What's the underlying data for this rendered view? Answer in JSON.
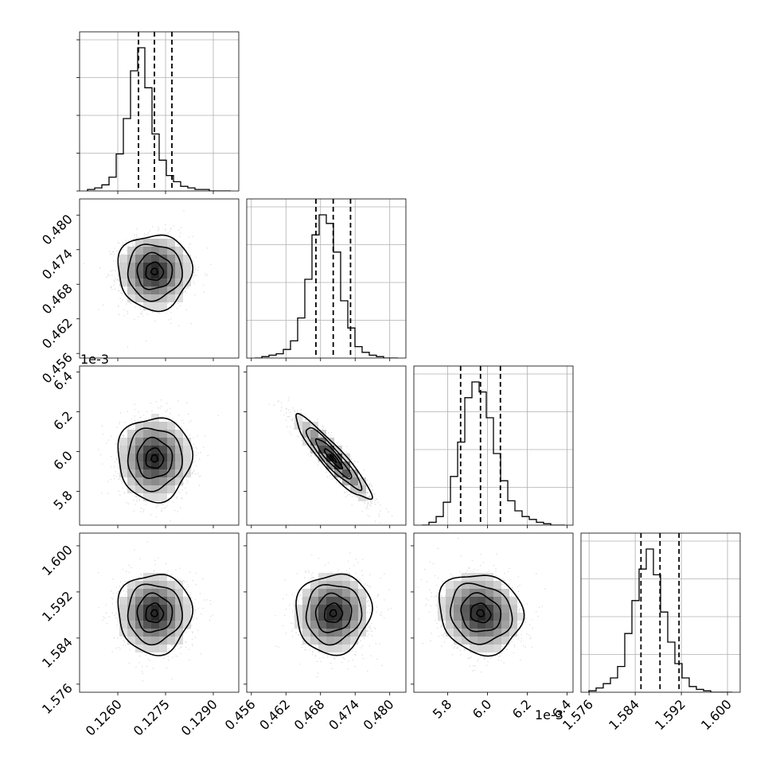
{
  "chart_data": {
    "type": "corner",
    "parameters": [
      {
        "range": [
          0.1248,
          0.1298
        ],
        "ticks": [
          "0.1260",
          "0.1275",
          "0.1290"
        ],
        "tick_values": [
          0.126,
          0.1275,
          0.129
        ],
        "quantiles": [
          0.12665,
          0.12715,
          0.1277
        ],
        "mean": 0.12715,
        "sd": 0.00055
      },
      {
        "range": [
          0.4552,
          0.4828
        ],
        "ticks": [
          "0.456",
          "0.462",
          "0.468",
          "0.474",
          "0.480"
        ],
        "tick_values": [
          0.456,
          0.462,
          0.468,
          0.474,
          0.48
        ],
        "quantiles": [
          0.4672,
          0.4702,
          0.4732
        ],
        "mean": 0.4702,
        "sd": 0.0031
      },
      {
        "range": [
          5.63,
          6.43
        ],
        "ticks": [
          "5.8",
          "6.0",
          "6.2",
          "6.4"
        ],
        "tick_values": [
          5.8,
          6.0,
          6.2,
          6.4
        ],
        "quantiles": [
          5.865,
          5.965,
          6.065
        ],
        "mean": 5.965,
        "sd": 0.1,
        "offset_label": "1e-3"
      },
      {
        "range": [
          1.5746,
          1.6022
        ],
        "ticks": [
          "1.576",
          "1.584",
          "1.592",
          "1.600"
        ],
        "tick_values": [
          1.576,
          1.584,
          1.592,
          1.6
        ],
        "quantiles": [
          1.585,
          1.5883,
          1.5916
        ],
        "mean": 1.5883,
        "sd": 0.0033
      }
    ],
    "histograms": [
      {
        "counts": [
          1,
          2,
          4,
          9,
          24,
          47,
          78,
          93,
          67,
          37,
          20,
          10,
          6,
          3,
          2,
          1,
          1,
          0,
          0,
          0
        ]
      },
      {
        "counts": [
          0,
          1,
          2,
          3,
          6,
          12,
          28,
          55,
          86,
          100,
          94,
          74,
          40,
          21,
          8,
          4,
          2,
          1,
          0,
          0
        ]
      },
      {
        "counts": [
          0,
          2,
          6,
          16,
          34,
          58,
          89,
          100,
          93,
          75,
          50,
          31,
          17,
          10,
          6,
          4,
          2,
          1,
          0,
          0
        ]
      },
      {
        "counts": [
          1,
          3,
          6,
          10,
          18,
          41,
          64,
          86,
          100,
          82,
          56,
          35,
          20,
          10,
          4,
          2,
          1,
          0,
          0,
          0
        ]
      }
    ],
    "correlations": {
      "1-0": 0.0,
      "2-0": 0.0,
      "2-1": -0.92,
      "3-0": 0.0,
      "3-1": 0.05,
      "3-2": -0.12
    },
    "grid": true,
    "title": "",
    "xlabel": "",
    "ylabel": ""
  }
}
